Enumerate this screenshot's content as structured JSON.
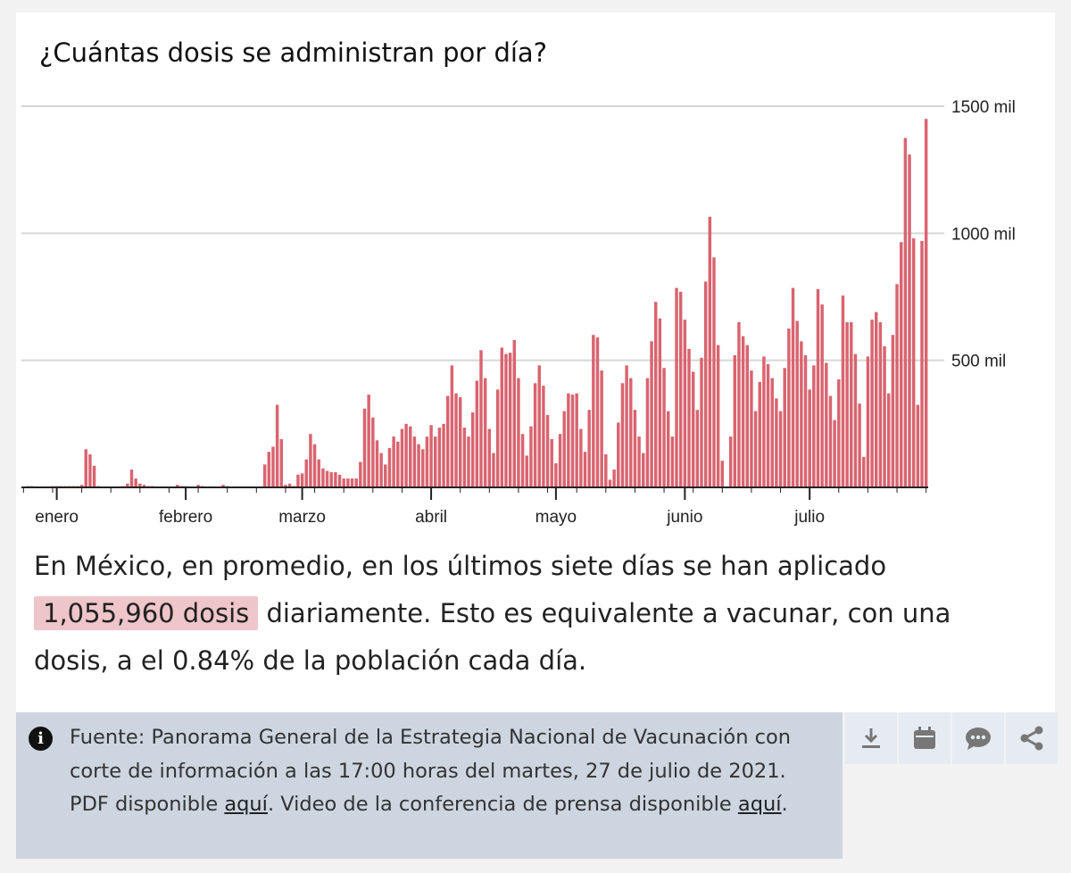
{
  "chart_data": {
    "type": "bar",
    "title": "¿Cuántas dosis se administran por día?",
    "xlabel": "",
    "ylabel": "",
    "x_tick_labels": [
      "enero",
      "febrero",
      "marzo",
      "abril",
      "mayo",
      "junio",
      "julio"
    ],
    "y_tick_labels": [
      "500 mil",
      "1000 mil",
      "1500 mil"
    ],
    "y_ticks": [
      500,
      1000,
      1500
    ],
    "ylim": [
      0,
      1500
    ],
    "grid": true,
    "bar_color": "#d9646f",
    "start_date": "2020-12-24",
    "values": [
      0,
      5,
      5,
      0,
      0,
      0,
      0,
      5,
      5,
      5,
      5,
      5,
      5,
      5,
      10,
      150,
      130,
      85,
      5,
      0,
      0,
      0,
      0,
      0,
      5,
      15,
      70,
      35,
      15,
      10,
      5,
      5,
      0,
      0,
      0,
      0,
      0,
      10,
      5,
      5,
      0,
      0,
      10,
      5,
      0,
      0,
      0,
      0,
      10,
      5,
      0,
      0,
      0,
      0,
      0,
      0,
      0,
      0,
      90,
      140,
      160,
      325,
      190,
      10,
      15,
      5,
      50,
      55,
      110,
      210,
      170,
      110,
      75,
      65,
      60,
      60,
      50,
      35,
      35,
      35,
      35,
      100,
      310,
      365,
      275,
      185,
      135,
      90,
      155,
      200,
      180,
      230,
      250,
      240,
      200,
      170,
      150,
      200,
      245,
      200,
      235,
      250,
      360,
      480,
      370,
      355,
      235,
      200,
      295,
      420,
      540,
      430,
      230,
      135,
      385,
      550,
      525,
      530,
      580,
      430,
      210,
      125,
      240,
      410,
      480,
      400,
      285,
      190,
      95,
      210,
      300,
      370,
      365,
      370,
      230,
      140,
      305,
      600,
      590,
      460,
      130,
      30,
      70,
      255,
      410,
      480,
      430,
      305,
      200,
      135,
      430,
      575,
      730,
      665,
      470,
      300,
      200,
      785,
      770,
      660,
      545,
      455,
      305,
      510,
      810,
      1065,
      905,
      560,
      105,
      0,
      200,
      520,
      650,
      595,
      560,
      460,
      300,
      415,
      515,
      485,
      430,
      350,
      300,
      470,
      625,
      785,
      655,
      575,
      520,
      385,
      480,
      780,
      720,
      490,
      360,
      265,
      425,
      755,
      650,
      650,
      525,
      330,
      120,
      515,
      660,
      690,
      650,
      555,
      370,
      600,
      800,
      965,
      1375,
      1310,
      980,
      325,
      970,
      1450
    ]
  },
  "summary": {
    "part1": "En México, en promedio, en los últimos siete días se han aplicado",
    "highlight": "1,055,960 dosis",
    "part2": "diariamente. Esto es equivalente a vacunar, con una dosis, a el 0.84% de la población cada día."
  },
  "source": {
    "icon": "info-icon",
    "text1": "Fuente: Panorama General de la Estrategia Nacional de Vacunación con corte de información a las 17:00 horas del martes, 27 de julio de 2021. PDF disponible",
    "link1": "aquí",
    "text2": ". Video de la conferencia de prensa disponible",
    "link2": "aquí",
    "text3": "."
  },
  "actions": {
    "color": "#777777",
    "icons": [
      "download-icon",
      "calendar-icon",
      "comment-icon",
      "share-icon"
    ]
  }
}
